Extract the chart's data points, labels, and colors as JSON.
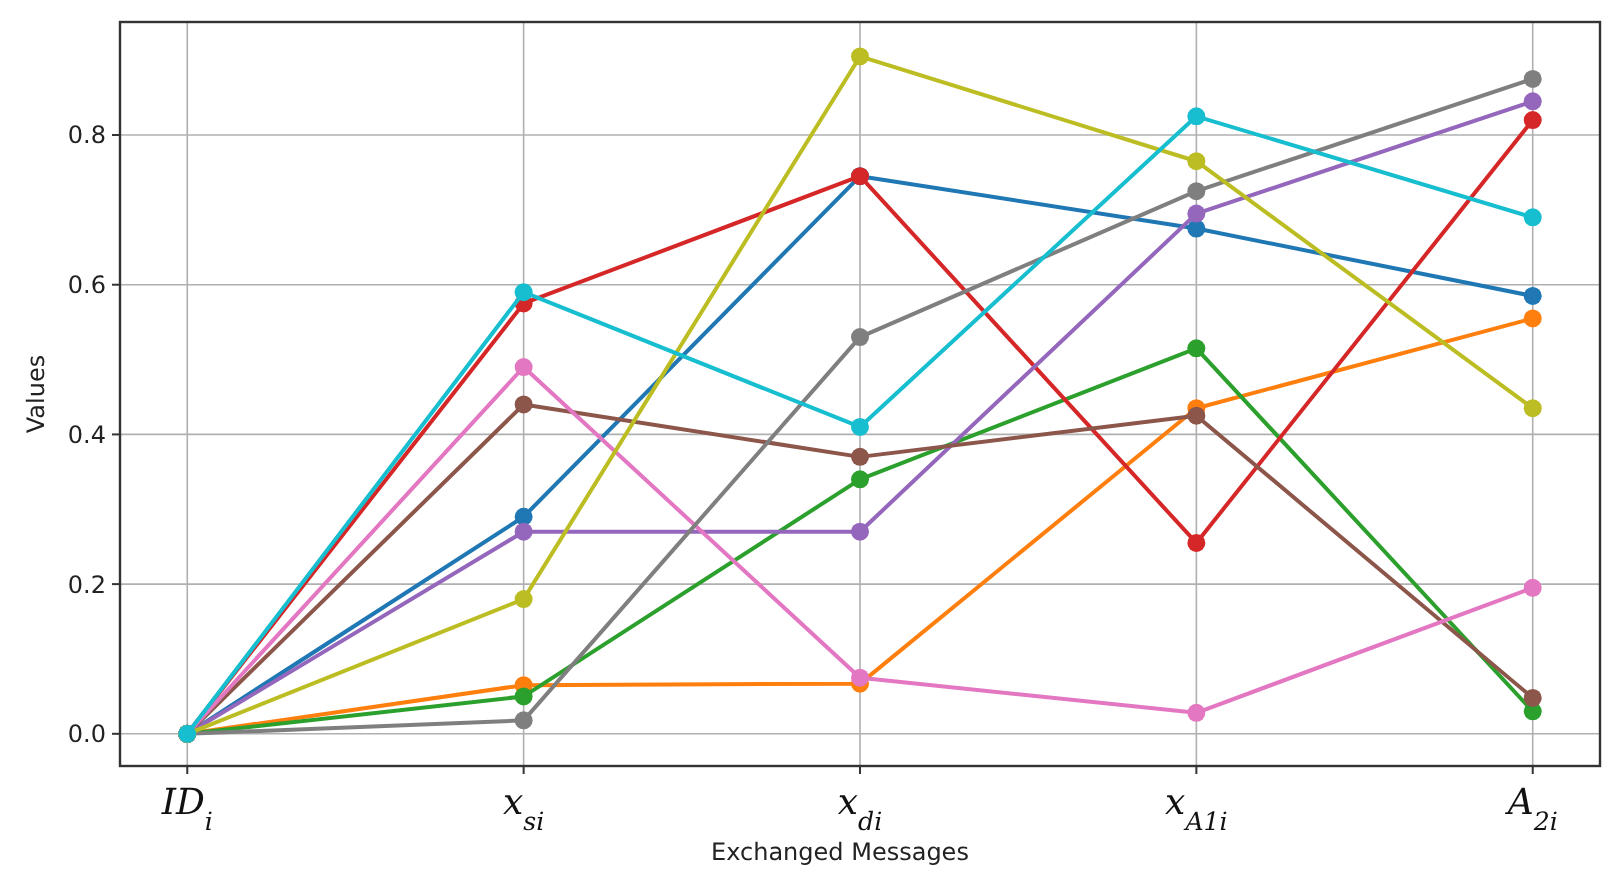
{
  "chart_data": {
    "type": "line",
    "xlabel": "Exchanged Messages",
    "ylabel": "Values",
    "categories": [
      "ID$_{i}$",
      "x$_{si}$",
      "x$_{di}$",
      "x$_{A1i}$",
      "A$_{2i}$"
    ],
    "series": [
      {
        "color": "#1f77b4",
        "values": [
          0,
          0.29,
          0.745,
          0.675,
          0.585
        ]
      },
      {
        "color": "#ff7f0e",
        "values": [
          0,
          0.065,
          0.067,
          0.435,
          0.555
        ]
      },
      {
        "color": "#2ca02c",
        "values": [
          0,
          0.05,
          0.34,
          0.515,
          0.03
        ]
      },
      {
        "color": "#d62728",
        "values": [
          0,
          0.575,
          0.745,
          0.255,
          0.82
        ]
      },
      {
        "color": "#9467bd",
        "values": [
          0,
          0.27,
          0.27,
          0.695,
          0.845
        ]
      },
      {
        "color": "#8c564b",
        "values": [
          0,
          0.44,
          0.37,
          0.425,
          0.048
        ]
      },
      {
        "color": "#e377c2",
        "values": [
          0,
          0.49,
          0.075,
          0.028,
          0.195
        ]
      },
      {
        "color": "#7f7f7f",
        "values": [
          0,
          0.018,
          0.53,
          0.725,
          0.875
        ]
      },
      {
        "color": "#bcbd22",
        "values": [
          0,
          0.18,
          0.905,
          0.765,
          0.435
        ]
      },
      {
        "color": "#17becf",
        "values": [
          0,
          0.59,
          0.41,
          0.825,
          0.69
        ]
      }
    ],
    "ylim": [
      -0.043,
      0.951
    ],
    "yticks": [
      {
        "value": 0,
        "label": "0.0"
      },
      {
        "value": 0.2,
        "label": "0.2"
      },
      {
        "value": 0.4,
        "label": "0.4"
      },
      {
        "value": 0.6,
        "label": "0.6"
      },
      {
        "value": 0.8,
        "label": "0.8"
      }
    ],
    "grid": true,
    "marker": "circle",
    "line_style": "solid"
  }
}
